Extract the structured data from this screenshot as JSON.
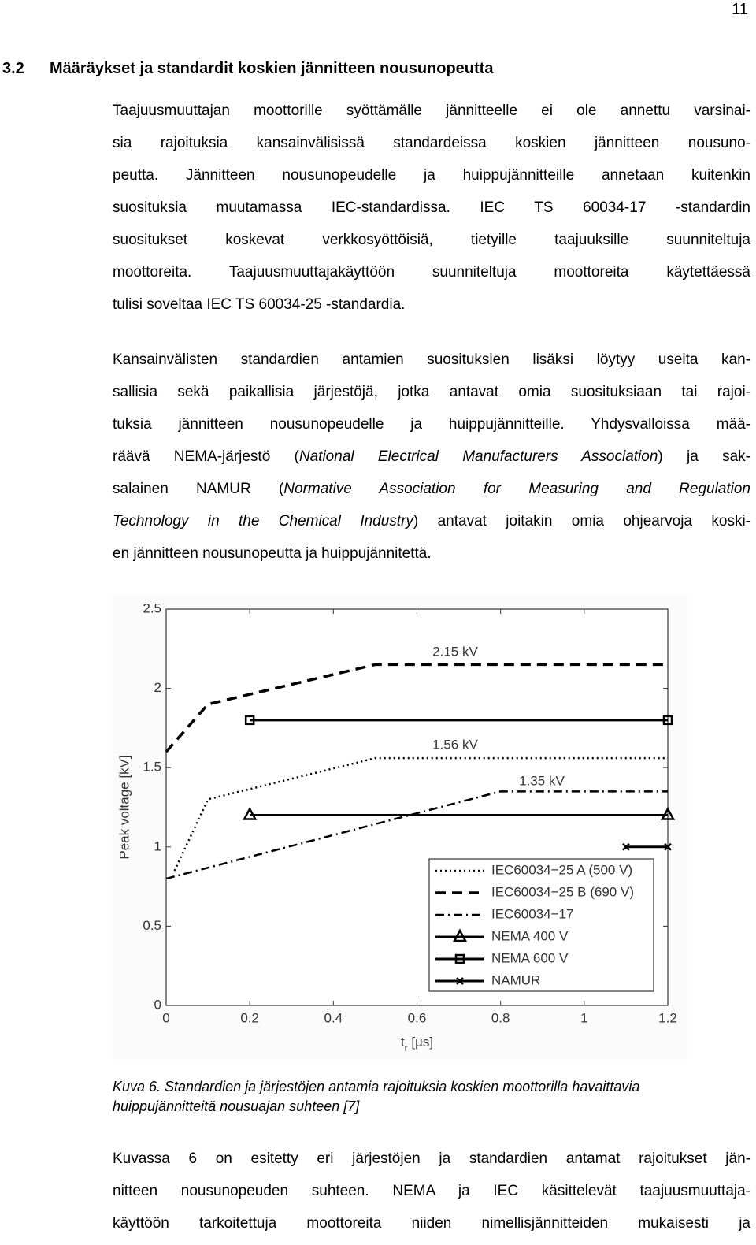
{
  "page_number": "11",
  "heading": {
    "number": "3.2",
    "title": "Määräykset ja standardit koskien jännitteen nousunopeutta"
  },
  "paragraphs": [
    {
      "lines": [
        "Taajuusmuuttajan moottorille syöttämälle jännitteelle ei ole annettu varsinai-",
        "sia rajoituksia kansainvälisissä standardeissa koskien jännitteen nousuno-",
        "peutta. Jännitteen nousunopeudelle ja huippujännitteille annetaan kuitenkin",
        "suosituksia muutamassa IEC-standardissa. IEC TS 60034-17 -standardin",
        "suositukset koskevat verkkosyöttöisiä, tietyille taajuuksille suunniteltuja",
        "moottoreita. Taajuusmuuttajakäyttöön suunniteltuja moottoreita käytettäessä",
        "tulisi soveltaa IEC TS 60034-25 -standardia."
      ]
    },
    {
      "lines": [
        "Kansainvälisten standardien antamien suosituksien lisäksi löytyy useita kan-",
        "sallisia sekä paikallisia järjestöjä, jotka antavat omia suosituksiaan tai rajoi-",
        "tuksia jännitteen nousunopeudelle ja huippujännitteille. Yhdysvalloissa mää-",
        [
          {
            "text": "räävä NEMA-järjestö (",
            "italic": false
          },
          {
            "text": "National Electrical Manufacturers Association",
            "italic": true
          },
          {
            "text": ") ja sak-",
            "italic": false
          }
        ],
        [
          {
            "text": "salainen NAMUR (",
            "italic": false
          },
          {
            "text": "Normative Association for Measuring and Regulation",
            "italic": true
          }
        ],
        [
          {
            "text": "Technology in the Chemical Industry",
            "italic": true
          },
          {
            "text": ") antavat joitakin omia ohjearvoja koski-",
            "italic": false
          }
        ],
        "en jännitteen nousunopeutta ja huippujännitettä."
      ]
    },
    {
      "lines": [
        "Kuvassa 6 on esitetty eri järjestöjen ja standardien antamat rajoitukset jän-",
        "nitteen nousunopeuden suhteen. NEMA ja IEC käsittelevät taajuusmuuttaja-",
        "käyttöön tarkoitettuja moottoreita niiden nimellisjännitteiden mukaisesti ja"
      ]
    }
  ],
  "caption": [
    "Kuva 6. Standardien ja järjestöjen antamia rajoituksia koskien moottorilla havaittavia",
    "huippujännitteitä nousuajan suhteen [7]"
  ],
  "chart_data": {
    "type": "line",
    "xlabel": [
      "t",
      "r",
      " [µs]"
    ],
    "ylabel": "Peak voltage [kV]",
    "xlim": [
      0,
      1.2
    ],
    "xticks": [
      0,
      0.2,
      0.4,
      0.6,
      0.8,
      1,
      1.2
    ],
    "ylim": [
      0,
      2.5
    ],
    "yticks": [
      0,
      0.5,
      1,
      1.5,
      2,
      2.5
    ],
    "grid": false,
    "legend": "lower right",
    "annotations": [
      "2.15 kV",
      "1.56 kV",
      "1.35 kV"
    ],
    "series": [
      {
        "name": "IEC60034−25 A (500 V)",
        "color": "#000000",
        "dash": "dotted",
        "marker": null,
        "x": [
          0.02,
          0.1,
          0.5,
          1.2
        ],
        "values": [
          0.85,
          1.3,
          1.56,
          1.56
        ]
      },
      {
        "name": "IEC60034−25 B (690 V)",
        "color": "#000000",
        "dash": "dashed",
        "marker": null,
        "x": [
          0,
          0.1,
          0.5,
          1.2
        ],
        "values": [
          1.6,
          1.9,
          2.15,
          2.15
        ]
      },
      {
        "name": "IEC60034−17",
        "color": "#000000",
        "dash": "dashdot",
        "marker": null,
        "x": [
          0,
          0.8,
          1.2
        ],
        "values": [
          0.8,
          1.35,
          1.35
        ]
      },
      {
        "name": "NEMA 400 V",
        "color": "#000000",
        "dash": "solid",
        "marker": "triangle",
        "x": [
          0.2,
          1.2
        ],
        "values": [
          1.2,
          1.2
        ]
      },
      {
        "name": "NEMA 600 V",
        "color": "#000000",
        "dash": "solid",
        "marker": "square",
        "x": [
          0.2,
          1.2
        ],
        "values": [
          1.8,
          1.8
        ]
      },
      {
        "name": "NAMUR",
        "color": "#000000",
        "dash": "solid",
        "marker": "x",
        "x": [
          1.1,
          1.2
        ],
        "values": [
          1.0,
          1.0
        ]
      }
    ]
  }
}
